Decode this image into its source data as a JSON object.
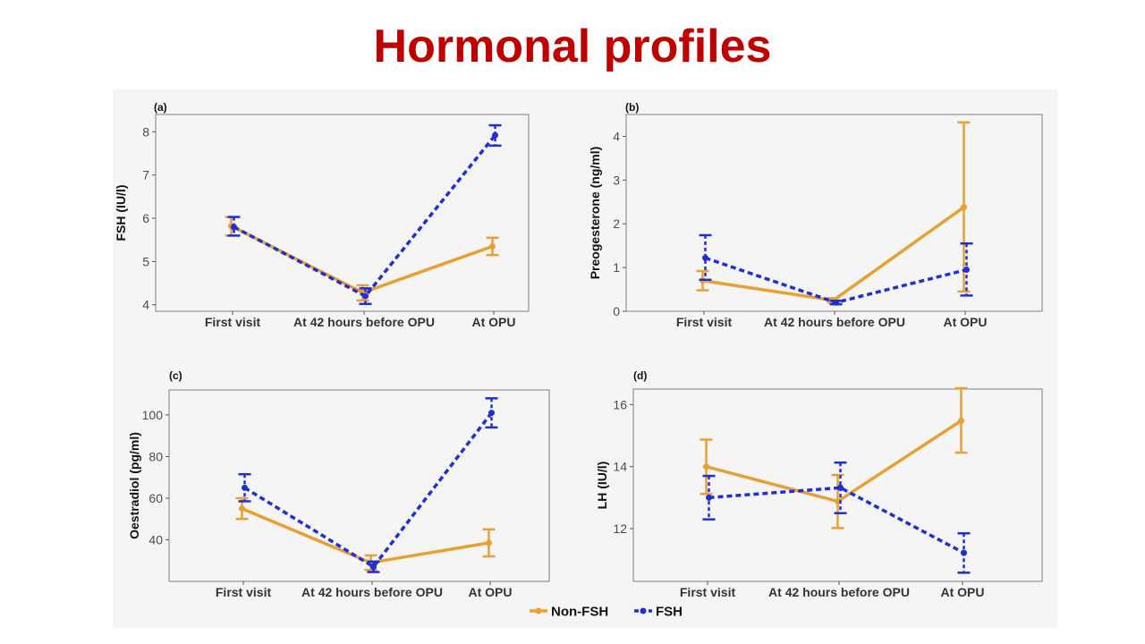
{
  "slide": {
    "title": "Hormonal profiles"
  },
  "legend": {
    "items": [
      {
        "label": "Non-FSH",
        "color": "#e8a033",
        "dash": false
      },
      {
        "label": "FSH",
        "color": "#1f2fd6",
        "dash": true
      }
    ]
  },
  "chart_data": [
    {
      "type": "line",
      "panel": "(a)",
      "ylabel": "FSH (IU/l)",
      "categories": [
        "First visit",
        "At 42 hours before OPU",
        "At OPU"
      ],
      "ylim": [
        3.85,
        8.4
      ],
      "yticks": [
        4,
        5,
        6,
        7,
        8
      ],
      "series": [
        {
          "name": "Non-FSH",
          "values": [
            5.82,
            4.28,
            5.35
          ],
          "lower": [
            5.6,
            4.1,
            5.15
          ],
          "upper": [
            6.03,
            4.45,
            5.55
          ]
        },
        {
          "name": "FSH",
          "values": [
            5.8,
            4.2,
            7.92
          ],
          "lower": [
            5.6,
            4.02,
            7.68
          ],
          "upper": [
            6.03,
            4.38,
            8.15
          ]
        }
      ]
    },
    {
      "type": "line",
      "panel": "(b)",
      "ylabel": "Preogesterone (ng/ml)",
      "categories": [
        "First visit",
        "At 42 hours before OPU",
        "At OPU"
      ],
      "ylim": [
        0,
        4.5
      ],
      "yticks": [
        0,
        1,
        2,
        3,
        4
      ],
      "series": [
        {
          "name": "Non-FSH",
          "values": [
            0.7,
            0.25,
            2.38
          ],
          "lower": [
            0.48,
            0.2,
            0.45
          ],
          "upper": [
            0.92,
            0.3,
            4.32
          ]
        },
        {
          "name": "FSH",
          "values": [
            1.22,
            0.2,
            0.95
          ],
          "lower": [
            0.72,
            0.16,
            0.36
          ],
          "upper": [
            1.74,
            0.24,
            1.55
          ]
        }
      ]
    },
    {
      "type": "line",
      "panel": "(c)",
      "ylabel": "Oestradiol (pg/ml)",
      "categories": [
        "First visit",
        "At 42 hours before OPU",
        "At OPU"
      ],
      "ylim": [
        20,
        112
      ],
      "yticks": [
        40,
        60,
        80,
        100
      ],
      "series": [
        {
          "name": "Non-FSH",
          "values": [
            55,
            29,
            38.5
          ],
          "lower": [
            50,
            25.5,
            32
          ],
          "upper": [
            60,
            32.5,
            45
          ]
        },
        {
          "name": "FSH",
          "values": [
            65,
            27,
            101
          ],
          "lower": [
            58.5,
            24.5,
            94
          ],
          "upper": [
            71.5,
            29.5,
            108
          ]
        }
      ]
    },
    {
      "type": "line",
      "panel": "(d)",
      "ylabel": "LH (IU/l)",
      "categories": [
        "First visit",
        "At 42 hours before OPU",
        "At OPU"
      ],
      "ylim": [
        10.3,
        16.5
      ],
      "yticks": [
        12,
        14,
        16
      ],
      "series": [
        {
          "name": "Non-FSH",
          "values": [
            14.0,
            12.88,
            15.48
          ],
          "lower": [
            13.12,
            12.02,
            14.45
          ],
          "upper": [
            14.87,
            13.73,
            16.53
          ]
        },
        {
          "name": "FSH",
          "values": [
            13.0,
            13.32,
            11.22
          ],
          "lower": [
            12.3,
            12.5,
            10.58
          ],
          "upper": [
            13.7,
            14.13,
            11.85
          ]
        }
      ]
    }
  ]
}
